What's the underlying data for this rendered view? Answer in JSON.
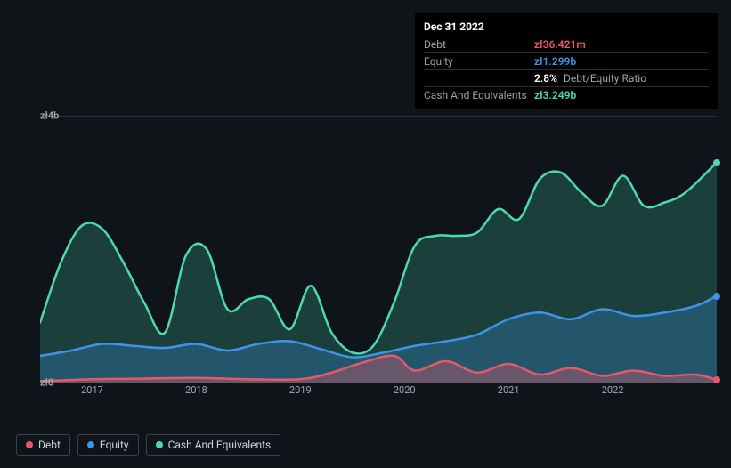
{
  "colors": {
    "background": "#0f1419",
    "grid": "#2a3340",
    "axis_text": "#a0a8b4",
    "tooltip_bg": "#000000",
    "tooltip_border": "#2a2f38",
    "tooltip_label": "#9aa3b0"
  },
  "tooltip": {
    "date": "Dec 31 2022",
    "rows": [
      {
        "label": "Debt",
        "value": "zł36.421m",
        "color": "#e8586b"
      },
      {
        "label": "Equity",
        "value": "zł1.299b",
        "color": "#3d94e8"
      },
      {
        "label": "",
        "value": "2.8%",
        "suffix": "Debt/Equity Ratio",
        "color": "#ffffff"
      },
      {
        "label": "Cash And Equivalents",
        "value": "zł3.249b",
        "color": "#4bd9b8"
      }
    ]
  },
  "chart": {
    "type": "area",
    "ylim": [
      0,
      4
    ],
    "y_ticks": [
      {
        "v": 0,
        "label": "zł0"
      },
      {
        "v": 4,
        "label": "zł4b"
      }
    ],
    "x_ticks": [
      "2017",
      "2018",
      "2019",
      "2020",
      "2021",
      "2022"
    ],
    "xlim": [
      2016.5,
      2023.0
    ],
    "series": [
      {
        "name": "Cash And Equivalents",
        "color": "#4bd9b8",
        "fill_opacity": 0.22,
        "line_width": 2.5,
        "points": [
          [
            2016.5,
            0.9
          ],
          [
            2016.7,
            1.8
          ],
          [
            2016.9,
            2.35
          ],
          [
            2017.1,
            2.3
          ],
          [
            2017.3,
            1.8
          ],
          [
            2017.5,
            1.2
          ],
          [
            2017.7,
            0.75
          ],
          [
            2017.9,
            1.9
          ],
          [
            2018.1,
            2.0
          ],
          [
            2018.3,
            1.1
          ],
          [
            2018.5,
            1.25
          ],
          [
            2018.7,
            1.25
          ],
          [
            2018.9,
            0.8
          ],
          [
            2019.1,
            1.45
          ],
          [
            2019.3,
            0.75
          ],
          [
            2019.5,
            0.45
          ],
          [
            2019.7,
            0.55
          ],
          [
            2019.9,
            1.2
          ],
          [
            2020.1,
            2.05
          ],
          [
            2020.3,
            2.2
          ],
          [
            2020.5,
            2.2
          ],
          [
            2020.7,
            2.25
          ],
          [
            2020.9,
            2.6
          ],
          [
            2021.1,
            2.45
          ],
          [
            2021.3,
            3.05
          ],
          [
            2021.5,
            3.15
          ],
          [
            2021.7,
            2.85
          ],
          [
            2021.9,
            2.65
          ],
          [
            2022.1,
            3.1
          ],
          [
            2022.3,
            2.65
          ],
          [
            2022.5,
            2.7
          ],
          [
            2022.7,
            2.85
          ],
          [
            2023.0,
            3.3
          ]
        ]
      },
      {
        "name": "Equity",
        "color": "#3d94e8",
        "fill_opacity": 0.28,
        "line_width": 2.5,
        "points": [
          [
            2016.5,
            0.4
          ],
          [
            2016.8,
            0.48
          ],
          [
            2017.1,
            0.58
          ],
          [
            2017.4,
            0.55
          ],
          [
            2017.7,
            0.52
          ],
          [
            2018.0,
            0.58
          ],
          [
            2018.3,
            0.48
          ],
          [
            2018.6,
            0.58
          ],
          [
            2018.9,
            0.62
          ],
          [
            2019.2,
            0.5
          ],
          [
            2019.5,
            0.38
          ],
          [
            2019.8,
            0.45
          ],
          [
            2020.1,
            0.55
          ],
          [
            2020.4,
            0.62
          ],
          [
            2020.7,
            0.72
          ],
          [
            2021.0,
            0.95
          ],
          [
            2021.3,
            1.05
          ],
          [
            2021.6,
            0.95
          ],
          [
            2021.9,
            1.1
          ],
          [
            2022.2,
            1.0
          ],
          [
            2022.5,
            1.05
          ],
          [
            2022.8,
            1.15
          ],
          [
            2023.0,
            1.3
          ]
        ]
      },
      {
        "name": "Debt",
        "color": "#e8586b",
        "fill_opacity": 0.35,
        "line_width": 2.5,
        "points": [
          [
            2016.5,
            0.02
          ],
          [
            2017.0,
            0.05
          ],
          [
            2017.5,
            0.06
          ],
          [
            2018.0,
            0.07
          ],
          [
            2018.5,
            0.05
          ],
          [
            2019.0,
            0.05
          ],
          [
            2019.3,
            0.15
          ],
          [
            2019.6,
            0.3
          ],
          [
            2019.9,
            0.4
          ],
          [
            2020.1,
            0.18
          ],
          [
            2020.4,
            0.32
          ],
          [
            2020.7,
            0.15
          ],
          [
            2021.0,
            0.28
          ],
          [
            2021.3,
            0.12
          ],
          [
            2021.6,
            0.22
          ],
          [
            2021.9,
            0.1
          ],
          [
            2022.2,
            0.18
          ],
          [
            2022.5,
            0.1
          ],
          [
            2022.8,
            0.12
          ],
          [
            2023.0,
            0.04
          ]
        ]
      }
    ],
    "legend": [
      {
        "label": "Debt",
        "color": "#e8586b"
      },
      {
        "label": "Equity",
        "color": "#3d94e8"
      },
      {
        "label": "Cash And Equivalents",
        "color": "#4bd9b8"
      }
    ]
  }
}
